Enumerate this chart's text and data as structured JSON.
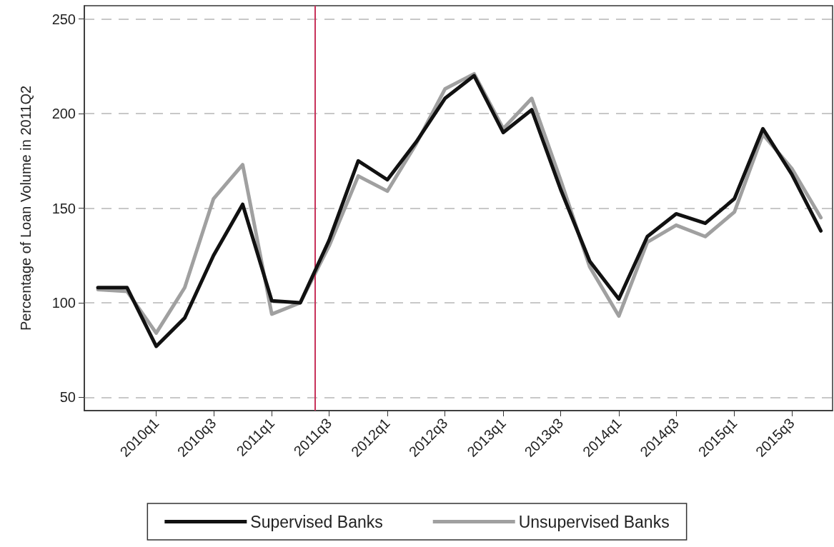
{
  "chart_data": {
    "type": "line",
    "ylabel": "Percentage of Loan Volume in 2011Q2",
    "x": [
      "2009-07",
      "2009-10",
      "2010-01",
      "2010-04",
      "2010-07",
      "2010-10",
      "2011-01",
      "2011-04",
      "2011-07",
      "2011-10",
      "2012-01",
      "2012-04",
      "2012-07",
      "2012-10",
      "2013-01",
      "2013-04",
      "2013-07",
      "2013-10",
      "2014-01",
      "2014-04",
      "2014-07",
      "2014-10",
      "2015-01",
      "2015-04",
      "2015-07",
      "2015-10"
    ],
    "series": [
      {
        "name": "Supervised Banks",
        "color": "#111111",
        "values": [
          108,
          108,
          77,
          92,
          125,
          152,
          101,
          100,
          133,
          175,
          165,
          185,
          208,
          220,
          190,
          202,
          160,
          122,
          102,
          135,
          147,
          142,
          155,
          192,
          168,
          138
        ]
      },
      {
        "name": "Unsupervised Banks",
        "color": "#a0a0a0",
        "values": [
          107,
          106,
          84,
          108,
          155,
          173,
          94,
          100,
          130,
          167,
          159,
          184,
          213,
          221,
          192,
          208,
          165,
          119,
          93,
          132,
          141,
          135,
          148,
          189,
          171,
          145
        ]
      }
    ],
    "xlim": [
      "2009-05-19",
      "2015-11-07"
    ],
    "xticks": [
      {
        "value": "2010-01",
        "label": "2010q1"
      },
      {
        "value": "2010-07",
        "label": "2010q3"
      },
      {
        "value": "2011-01",
        "label": "2011q1"
      },
      {
        "value": "2011-07",
        "label": "2011q3"
      },
      {
        "value": "2012-01",
        "label": "2012q1"
      },
      {
        "value": "2012-07",
        "label": "2012q3"
      },
      {
        "value": "2013-01",
        "label": "2013q1"
      },
      {
        "value": "2013-07",
        "label": "2013q3"
      },
      {
        "value": "2014-01",
        "label": "2014q1"
      },
      {
        "value": "2014-07",
        "label": "2014q3"
      },
      {
        "value": "2015-01",
        "label": "2015q1"
      },
      {
        "value": "2015-07",
        "label": "2015q3"
      }
    ],
    "ylim": [
      43,
      257
    ],
    "yticks": [
      50,
      100,
      150,
      200,
      250
    ],
    "ref_lines": [
      {
        "axis": "x",
        "value": "2011-05-17",
        "color": "#c8325a",
        "line_style": "solid"
      }
    ],
    "grid": "y",
    "legend": "bottom",
    "marker": "none",
    "line_style": "solid"
  }
}
